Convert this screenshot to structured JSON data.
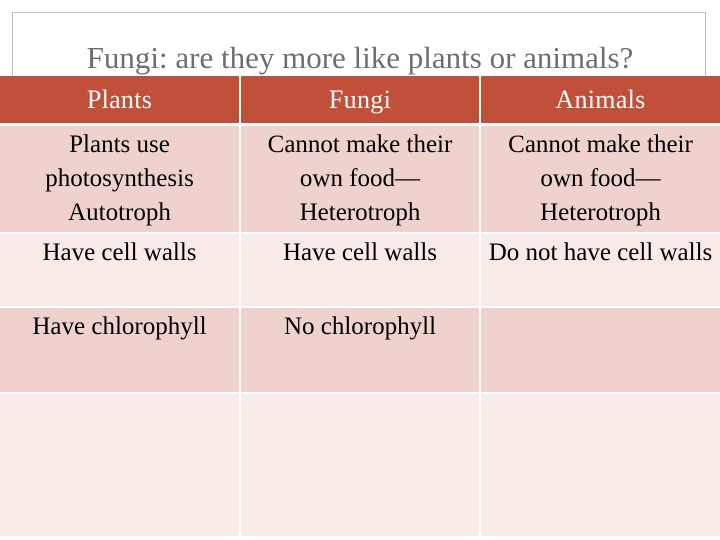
{
  "title": "Fungi: are they more like plants or animals?",
  "headers": {
    "plants": "Plants",
    "fungi": "Fungi",
    "animals": "Animals"
  },
  "rows": [
    {
      "plants": "Plants use photosynthesis Autotroph",
      "fungi": "Cannot make their own food— Heterotroph",
      "animals": "Cannot make their own food— Heterotroph"
    },
    {
      "plants": "Have cell walls",
      "fungi": "Have cell walls",
      "animals": "Do not have cell walls"
    },
    {
      "plants": "Have chlorophyll",
      "fungi": "No chlorophyll",
      "animals": ""
    },
    {
      "plants": "",
      "fungi": "",
      "animals": ""
    }
  ],
  "colors": {
    "header_bg": "#c0503a",
    "row_dark": "#efd2cd",
    "row_light": "#f8eae7",
    "title_text": "#6e6e6e"
  }
}
